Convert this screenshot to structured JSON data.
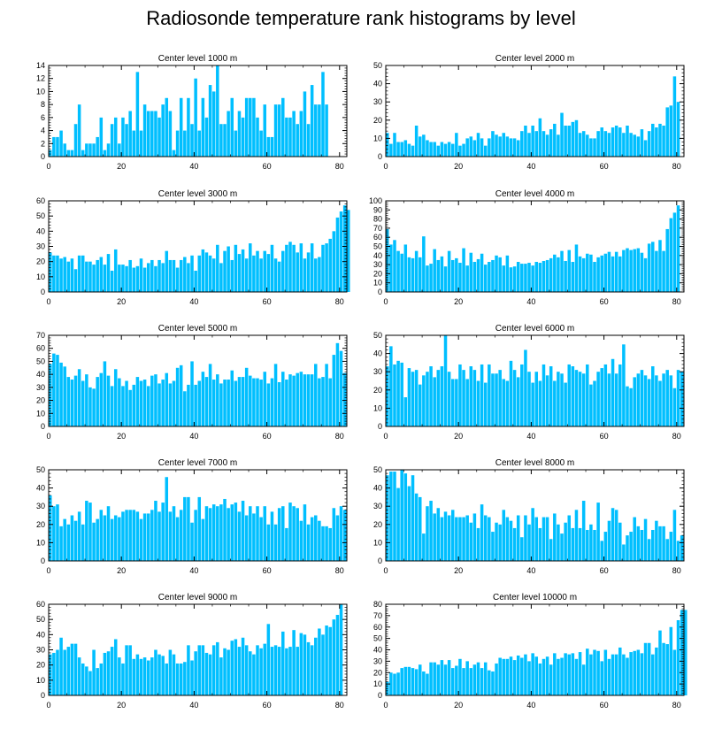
{
  "title": "Radiosonde temperature rank histograms by level",
  "bar_color": "#00bfff",
  "chart_data": [
    {
      "type": "bar",
      "title": "Center level 1000 m",
      "xlabel": "",
      "ylabel": "",
      "xlim": [
        0,
        82
      ],
      "ylim": [
        0,
        14
      ],
      "xticks": [
        0,
        20,
        40,
        60,
        80
      ],
      "yticks": [
        0,
        2,
        4,
        6,
        8,
        10,
        12,
        14
      ],
      "values": [
        1,
        3,
        3,
        4,
        2,
        1,
        1,
        5,
        8,
        1,
        2,
        2,
        2,
        3,
        6,
        1,
        2,
        5,
        6,
        2,
        6,
        5,
        7,
        4,
        13,
        4,
        8,
        7,
        7,
        7,
        6,
        8,
        9,
        7,
        1,
        4,
        9,
        4,
        9,
        5,
        12,
        4,
        9,
        6,
        11,
        10,
        14,
        5,
        5,
        7,
        9,
        4,
        7,
        6,
        9,
        9,
        9,
        6,
        4,
        8,
        3,
        3,
        8,
        8,
        9,
        6,
        6,
        7,
        5,
        7,
        10,
        5,
        11,
        8,
        8,
        13,
        8
      ]
    },
    {
      "type": "bar",
      "title": "Center level 2000 m",
      "xlabel": "",
      "ylabel": "",
      "xlim": [
        0,
        82
      ],
      "ylim": [
        0,
        50
      ],
      "xticks": [
        0,
        20,
        40,
        60,
        80
      ],
      "yticks": [
        0,
        10,
        20,
        30,
        40,
        50
      ],
      "values": [
        13,
        7,
        13,
        8,
        8,
        9,
        7,
        6,
        17,
        11,
        12,
        9,
        8,
        8,
        6,
        8,
        7,
        8,
        7,
        13,
        6,
        7,
        10,
        11,
        9,
        13,
        10,
        6,
        10,
        14,
        12,
        11,
        13,
        11,
        10,
        10,
        9,
        14,
        17,
        13,
        17,
        14,
        21,
        14,
        12,
        15,
        18,
        12,
        24,
        17,
        17,
        19,
        20,
        13,
        14,
        12,
        10,
        10,
        14,
        16,
        14,
        13,
        16,
        17,
        16,
        13,
        17,
        13,
        12,
        11,
        15,
        9,
        14,
        18,
        16,
        18,
        17,
        27,
        28,
        44,
        30
      ]
    },
    {
      "type": "bar",
      "title": "Center level 3000 m",
      "xlabel": "",
      "ylabel": "",
      "xlim": [
        0,
        82
      ],
      "ylim": [
        0,
        60
      ],
      "xticks": [
        0,
        20,
        40,
        60,
        80
      ],
      "yticks": [
        0,
        10,
        20,
        30,
        40,
        50,
        60
      ],
      "values": [
        26,
        24,
        24,
        22,
        23,
        20,
        22,
        15,
        24,
        24,
        20,
        20,
        18,
        21,
        23,
        18,
        25,
        14,
        28,
        18,
        18,
        17,
        21,
        16,
        17,
        22,
        16,
        19,
        21,
        17,
        21,
        19,
        27,
        21,
        21,
        16,
        21,
        23,
        19,
        24,
        14,
        24,
        28,
        26,
        24,
        22,
        31,
        19,
        27,
        30,
        21,
        31,
        25,
        28,
        22,
        32,
        24,
        27,
        22,
        27,
        25,
        31,
        22,
        20,
        27,
        31,
        33,
        31,
        26,
        32,
        22,
        26,
        32,
        22,
        23,
        31,
        32,
        35,
        40,
        49,
        53,
        57,
        54
      ]
    },
    {
      "type": "bar",
      "title": "Center level 4000 m",
      "xlabel": "",
      "ylabel": "",
      "xlim": [
        0,
        82
      ],
      "ylim": [
        0,
        100
      ],
      "xticks": [
        0,
        20,
        40,
        60,
        80
      ],
      "yticks": [
        0,
        10,
        20,
        30,
        40,
        50,
        60,
        70,
        80,
        90,
        100
      ],
      "values": [
        69,
        52,
        57,
        45,
        42,
        52,
        38,
        37,
        45,
        38,
        61,
        29,
        31,
        47,
        35,
        39,
        28,
        45,
        35,
        37,
        32,
        48,
        29,
        43,
        33,
        36,
        42,
        30,
        33,
        35,
        40,
        38,
        29,
        40,
        27,
        28,
        33,
        31,
        31,
        32,
        29,
        33,
        32,
        34,
        35,
        37,
        41,
        38,
        45,
        34,
        46,
        33,
        52,
        39,
        37,
        42,
        41,
        33,
        38,
        40,
        42,
        44,
        39,
        44,
        39,
        46,
        48,
        46,
        47,
        48,
        43,
        37,
        53,
        55,
        45,
        57,
        45,
        69,
        81,
        87,
        95
      ]
    },
    {
      "type": "bar",
      "title": "Center level 5000 m",
      "xlabel": "",
      "ylabel": "",
      "xlim": [
        0,
        82
      ],
      "ylim": [
        0,
        70
      ],
      "xticks": [
        0,
        20,
        40,
        60,
        80
      ],
      "yticks": [
        0,
        10,
        20,
        30,
        40,
        50,
        60,
        70
      ],
      "values": [
        48,
        56,
        55,
        49,
        46,
        38,
        36,
        39,
        44,
        35,
        40,
        30,
        29,
        38,
        41,
        50,
        39,
        31,
        44,
        37,
        31,
        35,
        28,
        32,
        38,
        35,
        36,
        31,
        39,
        40,
        33,
        36,
        41,
        33,
        35,
        45,
        47,
        27,
        32,
        50,
        32,
        35,
        42,
        38,
        48,
        36,
        40,
        33,
        36,
        36,
        43,
        35,
        38,
        38,
        45,
        39,
        37,
        37,
        36,
        42,
        33,
        37,
        48,
        34,
        42,
        36,
        40,
        39,
        41,
        42,
        40,
        40,
        40,
        48,
        37,
        38,
        48,
        37,
        55,
        64,
        58,
        41
      ]
    },
    {
      "type": "bar",
      "title": "Center level 6000 m",
      "xlabel": "",
      "ylabel": "",
      "xlim": [
        0,
        82
      ],
      "ylim": [
        0,
        50
      ],
      "xticks": [
        0,
        20,
        40,
        60,
        80
      ],
      "yticks": [
        0,
        10,
        20,
        30,
        40,
        50
      ],
      "values": [
        33,
        44,
        34,
        36,
        35,
        16,
        32,
        30,
        31,
        23,
        28,
        30,
        33,
        27,
        31,
        33,
        50,
        30,
        26,
        26,
        34,
        31,
        26,
        33,
        31,
        25,
        34,
        24,
        34,
        29,
        29,
        31,
        26,
        25,
        36,
        31,
        27,
        34,
        42,
        30,
        24,
        30,
        25,
        34,
        28,
        33,
        25,
        30,
        29,
        24,
        34,
        33,
        31,
        30,
        29,
        34,
        23,
        25,
        30,
        32,
        34,
        29,
        37,
        29,
        34,
        45,
        22,
        21,
        27,
        29,
        31,
        28,
        26,
        33,
        28,
        25,
        29,
        31,
        28,
        21,
        31,
        30
      ]
    },
    {
      "type": "bar",
      "title": "Center level 7000 m",
      "xlabel": "",
      "ylabel": "",
      "xlim": [
        0,
        82
      ],
      "ylim": [
        0,
        50
      ],
      "xticks": [
        0,
        20,
        40,
        60,
        80
      ],
      "yticks": [
        0,
        10,
        20,
        30,
        40,
        50
      ],
      "values": [
        36,
        30,
        31,
        19,
        23,
        20,
        25,
        22,
        27,
        20,
        33,
        32,
        21,
        23,
        28,
        25,
        30,
        23,
        25,
        24,
        27,
        28,
        28,
        28,
        27,
        23,
        26,
        26,
        28,
        33,
        27,
        32,
        46,
        27,
        30,
        24,
        28,
        35,
        35,
        21,
        28,
        35,
        23,
        30,
        29,
        31,
        30,
        31,
        34,
        29,
        31,
        32,
        27,
        33,
        25,
        30,
        26,
        30,
        24,
        30,
        20,
        27,
        20,
        29,
        30,
        18,
        32,
        30,
        29,
        22,
        31,
        20,
        24,
        25,
        22,
        19,
        19,
        18,
        29,
        25,
        30,
        28
      ]
    },
    {
      "type": "bar",
      "title": "Center level 8000 m",
      "xlabel": "",
      "ylabel": "",
      "xlim": [
        0,
        82
      ],
      "ylim": [
        0,
        50
      ],
      "xticks": [
        0,
        20,
        40,
        60,
        80
      ],
      "yticks": [
        0,
        10,
        20,
        30,
        40,
        50
      ],
      "values": [
        47,
        49,
        49,
        40,
        50,
        48,
        41,
        47,
        37,
        35,
        15,
        30,
        33,
        26,
        29,
        24,
        27,
        25,
        28,
        24,
        24,
        24,
        25,
        21,
        26,
        18,
        31,
        25,
        24,
        16,
        21,
        20,
        28,
        24,
        22,
        18,
        25,
        13,
        25,
        20,
        29,
        24,
        18,
        24,
        24,
        12,
        26,
        20,
        15,
        21,
        25,
        18,
        28,
        18,
        33,
        17,
        20,
        17,
        32,
        11,
        16,
        22,
        29,
        28,
        21,
        9,
        14,
        16,
        24,
        19,
        17,
        23,
        12,
        17,
        22,
        19,
        19,
        12,
        16,
        28,
        11,
        14
      ]
    },
    {
      "type": "bar",
      "title": "Center level 9000 m",
      "xlabel": "",
      "ylabel": "",
      "xlim": [
        0,
        82
      ],
      "ylim": [
        0,
        60
      ],
      "xticks": [
        0,
        20,
        40,
        60,
        80
      ],
      "yticks": [
        0,
        10,
        20,
        30,
        40,
        50,
        60
      ],
      "values": [
        27,
        28,
        30,
        38,
        30,
        32,
        34,
        34,
        25,
        21,
        19,
        16,
        30,
        18,
        21,
        28,
        29,
        32,
        37,
        25,
        21,
        33,
        33,
        24,
        27,
        24,
        25,
        23,
        25,
        30,
        27,
        26,
        21,
        30,
        27,
        21,
        21,
        22,
        33,
        23,
        29,
        33,
        33,
        28,
        27,
        33,
        35,
        25,
        31,
        30,
        36,
        37,
        32,
        38,
        33,
        29,
        27,
        33,
        31,
        34,
        47,
        32,
        33,
        32,
        42,
        31,
        32,
        43,
        32,
        41,
        40,
        35,
        33,
        38,
        44,
        40,
        46,
        45,
        50,
        53,
        60
      ]
    },
    {
      "type": "bar",
      "title": "Center level 10000 m",
      "xlabel": "",
      "ylabel": "",
      "xlim": [
        0,
        82
      ],
      "ylim": [
        0,
        80
      ],
      "xticks": [
        0,
        20,
        40,
        60,
        80
      ],
      "yticks": [
        0,
        10,
        20,
        30,
        40,
        50,
        60,
        70,
        80
      ],
      "values": [
        12,
        20,
        19,
        20,
        24,
        25,
        25,
        24,
        23,
        27,
        21,
        19,
        29,
        29,
        27,
        31,
        27,
        31,
        24,
        26,
        32,
        24,
        30,
        24,
        27,
        29,
        24,
        29,
        22,
        21,
        28,
        33,
        32,
        32,
        34,
        31,
        35,
        33,
        36,
        30,
        37,
        34,
        28,
        32,
        34,
        27,
        37,
        32,
        33,
        37,
        36,
        37,
        32,
        38,
        27,
        41,
        36,
        40,
        39,
        30,
        40,
        32,
        36,
        36,
        42,
        36,
        33,
        38,
        39,
        40,
        37,
        46,
        46,
        36,
        42,
        57,
        46,
        45,
        60,
        40,
        66,
        75,
        75
      ]
    }
  ]
}
